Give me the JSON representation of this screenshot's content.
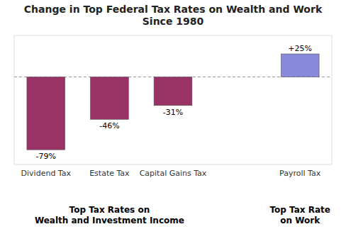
{
  "chart_data": {
    "type": "bar",
    "title": "Change in Top Federal Tax Rates on Wealth and Work\nSince 1980",
    "categories": [
      "Dividend Tax",
      "Estate Tax",
      "Capital Gains Tax",
      "Payroll Tax"
    ],
    "values": [
      -79,
      -46,
      -31,
      25
    ],
    "value_labels": [
      "-79%",
      "-46%",
      "-31%",
      "+25%"
    ],
    "colors": [
      "#993366",
      "#993366",
      "#993366",
      "#8888DD"
    ],
    "annotations": [
      "Top Tax Rates on\nWealth and Investment Income",
      "Top Tax Rate\non Work"
    ],
    "ylim": [
      -95,
      45
    ],
    "grid": false,
    "data_labels": true,
    "tick_labels": "x"
  }
}
